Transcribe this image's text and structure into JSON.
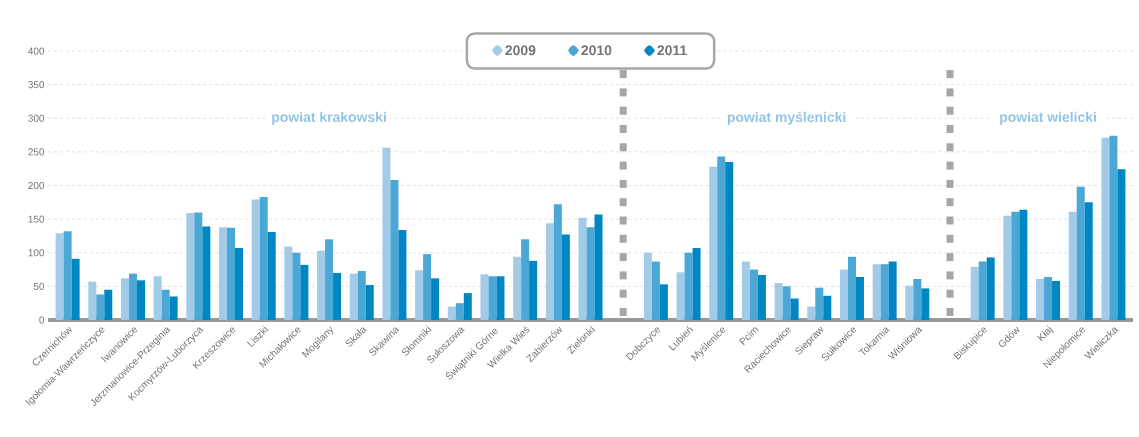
{
  "chart_data": {
    "type": "bar",
    "categories": [
      "Czernichów",
      "Igołomia-Wawrzeńczyce",
      "Iwanowice",
      "Jerzmanowice-Przeginia",
      "Kocmyrzów-Luborzyca",
      "Krzeszowice",
      "Liszki",
      "Michałowice",
      "Mogilany",
      "Skała",
      "Skawina",
      "Słomniki",
      "Sułoszowa",
      "Świątniki Górne",
      "Wielka Wieś",
      "Zabierzów",
      "Zielonki",
      null,
      "Dobczyce",
      "Lubień",
      "Myślenice",
      "Pcim",
      "Raciechowice",
      "Siepraw",
      "Sułkowice",
      "Tokarnia",
      "Wiśniowa",
      null,
      "Biskupice",
      "Gdów",
      "Kłaj",
      "Niepołomice",
      "Wieliczka"
    ],
    "series": [
      {
        "name": "2009",
        "color": "#a3cbe8",
        "values": [
          129,
          57,
          62,
          65,
          159,
          138,
          179,
          109,
          103,
          69,
          256,
          74,
          20,
          68,
          94,
          144,
          152,
          null,
          100,
          71,
          228,
          87,
          55,
          20,
          75,
          83,
          51,
          null,
          79,
          155,
          61,
          161,
          271
        ]
      },
      {
        "name": "2010",
        "color": "#4aa7d6",
        "values": [
          132,
          38,
          69,
          45,
          160,
          137,
          183,
          100,
          120,
          73,
          208,
          98,
          25,
          65,
          120,
          172,
          138,
          null,
          87,
          100,
          243,
          75,
          50,
          48,
          94,
          83,
          61,
          null,
          87,
          161,
          64,
          198,
          274
        ]
      },
      {
        "name": "2011",
        "color": "#0086c3",
        "values": [
          91,
          45,
          59,
          35,
          139,
          107,
          131,
          82,
          70,
          52,
          134,
          62,
          40,
          65,
          88,
          127,
          157,
          null,
          53,
          107,
          235,
          67,
          32,
          36,
          64,
          87,
          47,
          null,
          93,
          164,
          58,
          175,
          224
        ]
      }
    ],
    "ylim": [
      0,
      400
    ],
    "yticks": [
      0,
      50,
      100,
      150,
      200,
      250,
      300,
      350,
      400
    ],
    "grid": "y",
    "legend": "top",
    "annotations": [
      "powiat krakowski",
      "powiat myślenicki",
      "powiat wielicki"
    ]
  }
}
